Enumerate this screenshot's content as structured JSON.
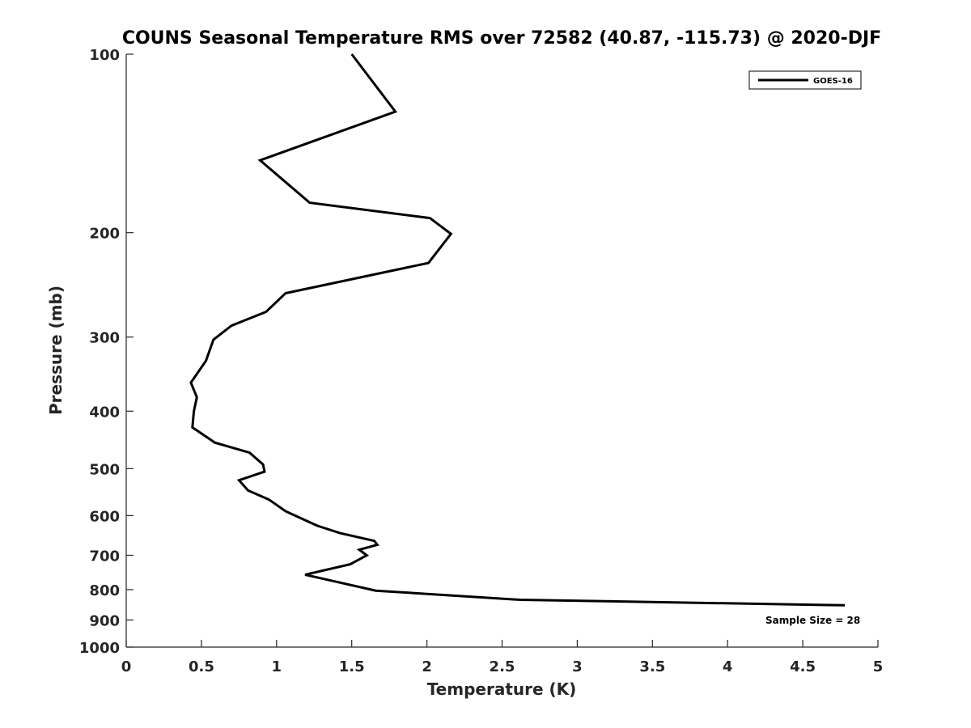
{
  "chart_data": {
    "type": "line",
    "title": "COUNS Seasonal Temperature RMS over 72582 (40.87, -115.73) @ 2020-DJF",
    "xlabel": "Temperature (K)",
    "ylabel": "Pressure (mb)",
    "xlim": [
      0,
      5
    ],
    "ylim": [
      100,
      1000
    ],
    "y_scale": "log",
    "y_reversed": true,
    "x_ticks": [
      0,
      0.5,
      1,
      1.5,
      2,
      2.5,
      3,
      3.5,
      4,
      4.5,
      5
    ],
    "x_tick_labels": [
      "0",
      "0.5",
      "1",
      "1.5",
      "2",
      "2.5",
      "3",
      "3.5",
      "4",
      "4.5",
      "5"
    ],
    "y_ticks": [
      100,
      200,
      300,
      400,
      500,
      600,
      700,
      800,
      900,
      1000
    ],
    "y_tick_labels": [
      "100",
      "200",
      "300",
      "400",
      "500",
      "600",
      "700",
      "800",
      "900",
      "1000"
    ],
    "grid": false,
    "legend_position": "top-right",
    "series": [
      {
        "name": "GOES-16",
        "color": "#000000",
        "x": [
          1.5,
          1.79,
          0.89,
          1.22,
          2.02,
          2.16,
          2.01,
          1.06,
          0.93,
          0.7,
          0.58,
          0.53,
          0.43,
          0.47,
          0.45,
          0.44,
          0.59,
          0.82,
          0.91,
          0.92,
          0.75,
          0.81,
          0.95,
          1.06,
          1.27,
          1.42,
          1.65,
          1.67,
          1.55,
          1.6,
          1.49,
          1.19,
          1.66,
          2.62,
          4.78
        ],
        "y": [
          100,
          125,
          151,
          178,
          189,
          201,
          225,
          253,
          272,
          287,
          303,
          329,
          358,
          379,
          400,
          426,
          452,
          470,
          492,
          506,
          523,
          544,
          564,
          590,
          624,
          642,
          662,
          672,
          685,
          700,
          725,
          755,
          803,
          832,
          850
        ]
      }
    ],
    "annotations": [
      "Sample Size = 28"
    ]
  }
}
